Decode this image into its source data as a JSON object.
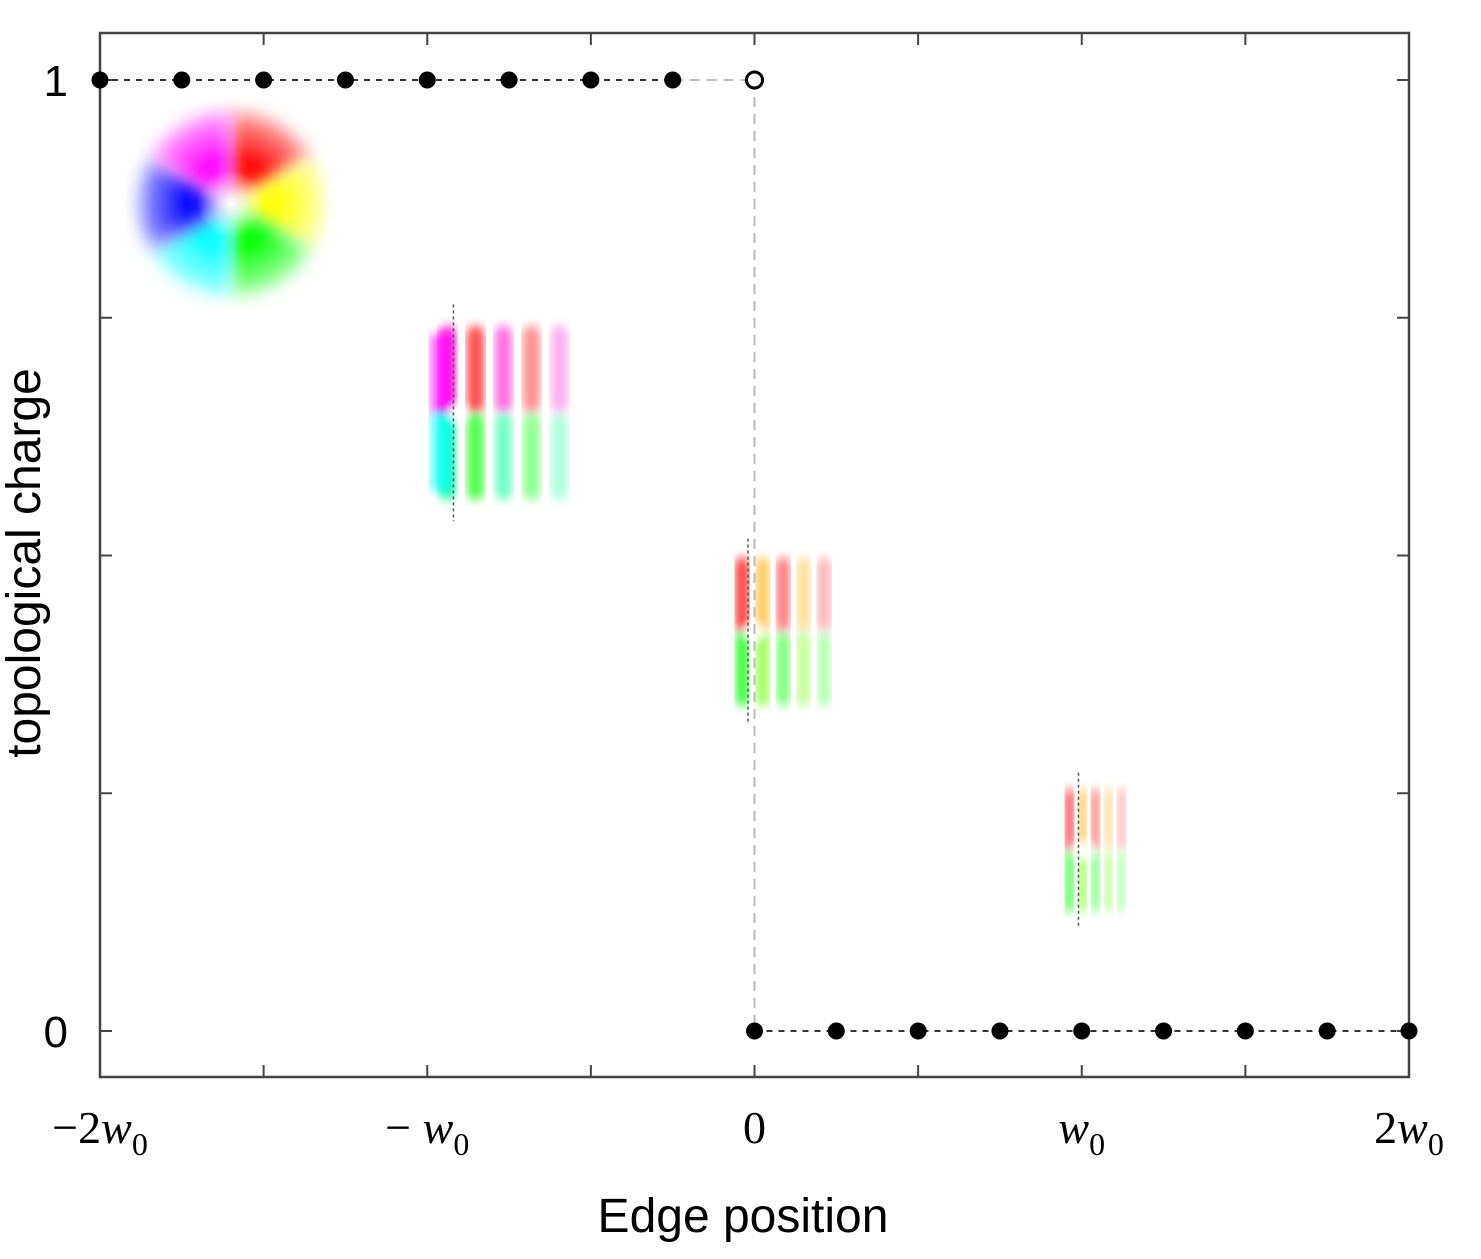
{
  "chart_data": {
    "type": "scatter",
    "xlabel": "Edge position",
    "ylabel": "topological charge",
    "xlim": [
      -2,
      2
    ],
    "ylim": [
      -0.05,
      1.05
    ],
    "grid": false,
    "x_tick_values": [
      -2,
      -1,
      0,
      1,
      2
    ],
    "x_tick_labels": [
      {
        "prefix": "−2",
        "var": "w",
        "sub": "0"
      },
      {
        "prefix": "− ",
        "var": "w",
        "sub": "0"
      },
      {
        "prefix": "0",
        "var": "",
        "sub": ""
      },
      {
        "prefix": "",
        "var": "w",
        "sub": "0"
      },
      {
        "prefix": "2",
        "var": "w",
        "sub": "0"
      }
    ],
    "minor_x_ticks": [
      -1.5,
      -0.5,
      0.5,
      1.5
    ],
    "y_tick_values": [
      0,
      0.25,
      0.5,
      0.75,
      1
    ],
    "y_tick_labels": [
      "0",
      "",
      "",
      "",
      "1"
    ],
    "series": [
      {
        "marker": "filled-circle",
        "points": [
          {
            "x": -2.0,
            "y": 1
          },
          {
            "x": -1.75,
            "y": 1
          },
          {
            "x": -1.5,
            "y": 1
          },
          {
            "x": -1.25,
            "y": 1
          },
          {
            "x": -1.0,
            "y": 1
          },
          {
            "x": -0.75,
            "y": 1
          },
          {
            "x": -0.5,
            "y": 1
          },
          {
            "x": -0.25,
            "y": 1
          },
          {
            "x": 0.0,
            "y": 0
          },
          {
            "x": 0.25,
            "y": 0
          },
          {
            "x": 0.5,
            "y": 0
          },
          {
            "x": 0.75,
            "y": 0
          },
          {
            "x": 1.0,
            "y": 0
          },
          {
            "x": 1.25,
            "y": 0
          },
          {
            "x": 1.5,
            "y": 0
          },
          {
            "x": 1.75,
            "y": 0
          },
          {
            "x": 2.0,
            "y": 0
          }
        ]
      },
      {
        "marker": "open-circle",
        "points": [
          {
            "x": 0.0,
            "y": 1
          }
        ]
      }
    ],
    "step_line": {
      "x": 0.0,
      "color": "#bbbbbb"
    },
    "beam_insets": [
      {
        "x": -1.6,
        "y": 0.87,
        "edge_x": null,
        "visible_fraction": 1.0
      },
      {
        "x": -0.75,
        "y": 0.65,
        "edge_x": -0.92,
        "visible_fraction": 0.8
      },
      {
        "x": 0.1,
        "y": 0.42,
        "edge_x": -0.02,
        "visible_fraction": 0.55
      },
      {
        "x": 1.05,
        "y": 0.19,
        "edge_x": 0.99,
        "visible_fraction": 0.3
      }
    ],
    "colors": {
      "marker": "#000000",
      "axis": "#444444",
      "dash_line": "#333333"
    }
  }
}
